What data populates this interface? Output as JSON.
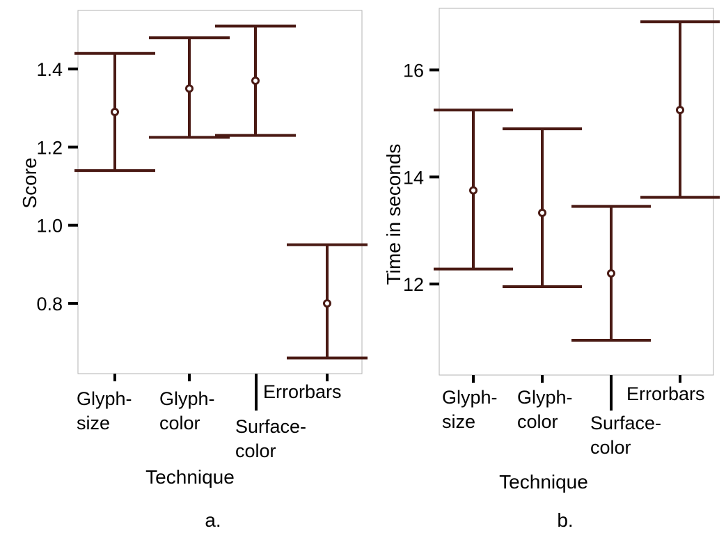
{
  "chart_data": [
    {
      "type": "errorbar",
      "panel_label": "a.",
      "xlabel": "Technique",
      "ylabel": "Score",
      "categories": [
        {
          "lines": [
            "Glyph-",
            "size"
          ]
        },
        {
          "lines": [
            "Glyph-",
            "color"
          ]
        },
        {
          "lines": [
            "Surface-",
            "color"
          ]
        },
        {
          "lines": [
            "Errorbars"
          ]
        }
      ],
      "points": [
        {
          "mean": 1.29,
          "low": 1.14,
          "high": 1.44
        },
        {
          "mean": 1.35,
          "low": 1.225,
          "high": 1.48
        },
        {
          "mean": 1.37,
          "low": 1.23,
          "high": 1.51
        },
        {
          "mean": 0.8,
          "low": 0.66,
          "high": 0.95
        }
      ],
      "yticks": [
        0.8,
        1.0,
        1.2,
        1.4
      ],
      "ytick_labels": [
        "0.8",
        "1.0",
        "1.2",
        "1.4"
      ],
      "ylim": [
        0.62,
        1.55
      ],
      "color": "#4a1a14"
    },
    {
      "type": "errorbar",
      "panel_label": "b.",
      "xlabel": "Technique",
      "ylabel": "Time in seconds",
      "categories": [
        {
          "lines": [
            "Glyph-",
            "size"
          ]
        },
        {
          "lines": [
            "Glyph-",
            "color"
          ]
        },
        {
          "lines": [
            "Surface-",
            "color"
          ]
        },
        {
          "lines": [
            "Errorbars"
          ]
        }
      ],
      "points": [
        {
          "mean": 13.75,
          "low": 12.28,
          "high": 15.25
        },
        {
          "mean": 13.33,
          "low": 11.95,
          "high": 14.9
        },
        {
          "mean": 12.2,
          "low": 10.95,
          "high": 13.45
        },
        {
          "mean": 15.25,
          "low": 13.62,
          "high": 16.9
        }
      ],
      "yticks": [
        12,
        14,
        16
      ],
      "ytick_labels": [
        "12",
        "14",
        "16"
      ],
      "ylim": [
        10.3,
        17.15
      ],
      "color": "#4a1a14"
    }
  ]
}
